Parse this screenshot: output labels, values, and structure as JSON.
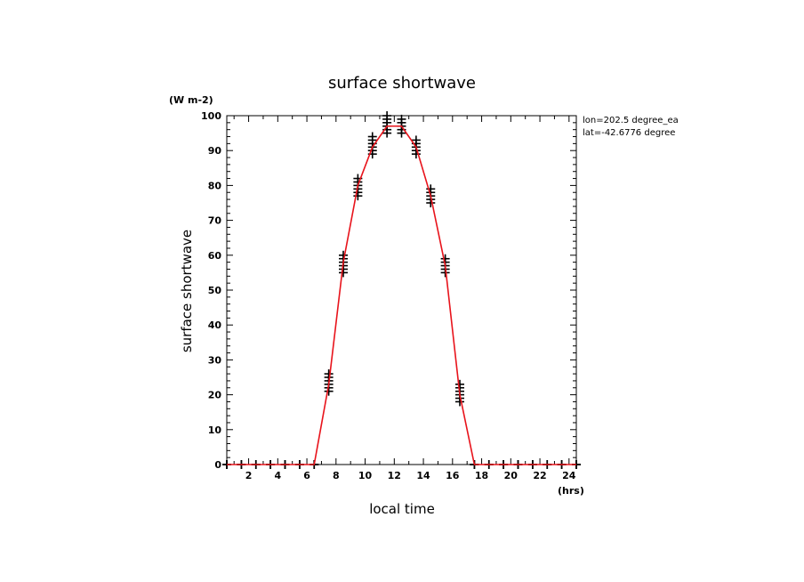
{
  "chart_data": {
    "type": "scatter",
    "title": "surface shortwave",
    "xlabel": "local time",
    "ylabel": "surface shortwave",
    "y_unit": "(W m-2)",
    "x_unit": "(hrs)",
    "annotation_lon": "lon=202.5 degree_ea",
    "annotation_lat": "lat=-42.6776 degree",
    "xlim": [
      0.5,
      24.5
    ],
    "ylim": [
      0,
      100
    ],
    "x_ticks": [
      2,
      4,
      6,
      8,
      10,
      12,
      14,
      16,
      18,
      20,
      22,
      24
    ],
    "y_ticks": [
      0,
      10,
      20,
      30,
      40,
      50,
      60,
      70,
      80,
      90,
      100
    ],
    "colors": {
      "line": "#e8131b",
      "points": "#000000",
      "axes": "#000000"
    },
    "series": [
      {
        "type": "line",
        "x": [
          0.5,
          1.5,
          2.5,
          3.5,
          4.5,
          5.5,
          6.5,
          7.5,
          8.5,
          9.5,
          10.5,
          11.5,
          12.5,
          13.5,
          14.5,
          15.5,
          16.5,
          17.5,
          18.5,
          19.5,
          20.5,
          21.5,
          22.5,
          23.5,
          24.5
        ],
        "y": [
          0,
          0,
          0,
          0,
          0,
          0,
          0,
          23,
          58,
          80,
          91,
          97,
          97,
          91,
          77,
          57,
          20,
          0,
          0,
          0,
          0,
          0,
          0,
          0,
          0
        ]
      },
      {
        "type": "scatter",
        "marker": "+",
        "points": [
          {
            "x": 0.5,
            "y": [
              0,
              0,
              0
            ]
          },
          {
            "x": 1.5,
            "y": [
              0,
              0,
              0
            ]
          },
          {
            "x": 2.5,
            "y": [
              0,
              0,
              0
            ]
          },
          {
            "x": 3.5,
            "y": [
              0,
              0,
              0
            ]
          },
          {
            "x": 4.5,
            "y": [
              0,
              0,
              0
            ]
          },
          {
            "x": 5.5,
            "y": [
              0,
              0,
              0
            ]
          },
          {
            "x": 6.5,
            "y": [
              0,
              0,
              0
            ]
          },
          {
            "x": 7.5,
            "y": [
              21,
              22,
              23,
              24,
              25,
              26
            ]
          },
          {
            "x": 8.5,
            "y": [
              55,
              56,
              57,
              58,
              59,
              60
            ]
          },
          {
            "x": 9.5,
            "y": [
              77,
              78,
              79,
              80,
              81,
              82
            ]
          },
          {
            "x": 10.5,
            "y": [
              89,
              90,
              91,
              92,
              93,
              94
            ]
          },
          {
            "x": 11.5,
            "y": [
              95,
              96,
              97,
              98,
              99,
              100
            ]
          },
          {
            "x": 12.5,
            "y": [
              95,
              96,
              97,
              98,
              99
            ]
          },
          {
            "x": 13.5,
            "y": [
              89,
              90,
              91,
              92,
              93
            ]
          },
          {
            "x": 14.5,
            "y": [
              75,
              76,
              77,
              78,
              79
            ]
          },
          {
            "x": 15.5,
            "y": [
              55,
              56,
              57,
              58,
              59
            ]
          },
          {
            "x": 16.5,
            "y": [
              18,
              19,
              20,
              21,
              22,
              23
            ]
          },
          {
            "x": 17.5,
            "y": [
              0,
              0,
              0
            ]
          },
          {
            "x": 18.5,
            "y": [
              0,
              0,
              0
            ]
          },
          {
            "x": 19.5,
            "y": [
              0,
              0,
              0
            ]
          },
          {
            "x": 20.5,
            "y": [
              0,
              0,
              0
            ]
          },
          {
            "x": 21.5,
            "y": [
              0,
              0,
              0
            ]
          },
          {
            "x": 22.5,
            "y": [
              0,
              0,
              0
            ]
          },
          {
            "x": 23.5,
            "y": [
              0,
              0,
              0
            ]
          },
          {
            "x": 24.5,
            "y": [
              0,
              0,
              0
            ]
          }
        ]
      }
    ]
  }
}
